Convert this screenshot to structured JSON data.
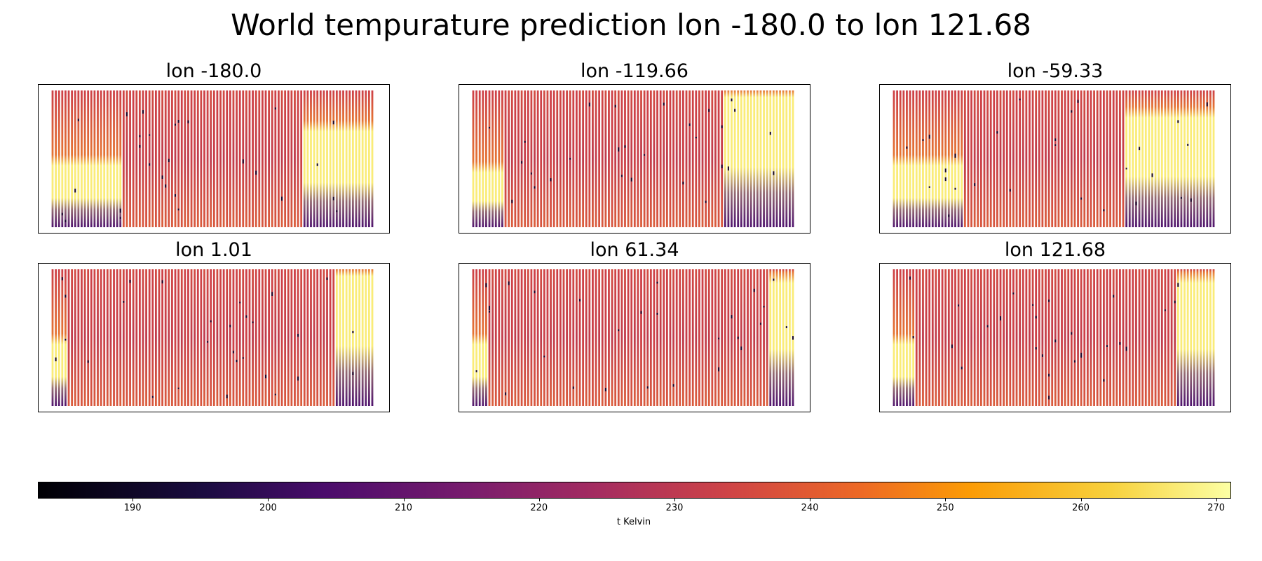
{
  "chart_data": {
    "type": "heatmap",
    "title": "World tempurature prediction lon -180.0 to lon 121.68",
    "colormap": "inferno",
    "panels": [
      {
        "title": "lon -180.0",
        "warm_zones": [
          {
            "from": 0.0,
            "to": 0.22,
            "lat_top": 0.55,
            "lat_bottom": 0.98
          },
          {
            "from": 0.78,
            "to": 1.0,
            "lat_top": 0.3,
            "lat_bottom": 0.98
          }
        ]
      },
      {
        "title": "lon -119.66",
        "warm_zones": [
          {
            "from": 0.0,
            "to": 0.1,
            "lat_top": 0.6,
            "lat_bottom": 0.98
          },
          {
            "from": 0.78,
            "to": 1.0,
            "lat_top": 0.05,
            "lat_bottom": 0.98
          }
        ]
      },
      {
        "title": "lon -59.33",
        "warm_zones": [
          {
            "from": 0.0,
            "to": 0.22,
            "lat_top": 0.55,
            "lat_bottom": 0.98
          },
          {
            "from": 0.72,
            "to": 1.0,
            "lat_top": 0.2,
            "lat_bottom": 0.98
          }
        ]
      },
      {
        "title": "lon 1.01",
        "warm_zones": [
          {
            "from": 0.0,
            "to": 0.05,
            "lat_top": 0.55,
            "lat_bottom": 0.98
          },
          {
            "from": 0.88,
            "to": 1.0,
            "lat_top": 0.05,
            "lat_bottom": 0.98
          }
        ]
      },
      {
        "title": "lon 61.34",
        "warm_zones": [
          {
            "from": 0.0,
            "to": 0.05,
            "lat_top": 0.55,
            "lat_bottom": 0.98
          },
          {
            "from": 0.92,
            "to": 1.0,
            "lat_top": 0.1,
            "lat_bottom": 0.98
          }
        ]
      },
      {
        "title": "lon 121.68",
        "warm_zones": [
          {
            "from": 0.0,
            "to": 0.07,
            "lat_top": 0.55,
            "lat_bottom": 0.98
          },
          {
            "from": 0.88,
            "to": 1.0,
            "lat_top": 0.1,
            "lat_bottom": 0.98
          }
        ]
      }
    ],
    "colorbar": {
      "label": "t Kelvin",
      "range": [
        183,
        271
      ],
      "ticks": [
        190,
        200,
        210,
        220,
        230,
        240,
        250,
        260,
        270
      ]
    },
    "grid": false
  }
}
